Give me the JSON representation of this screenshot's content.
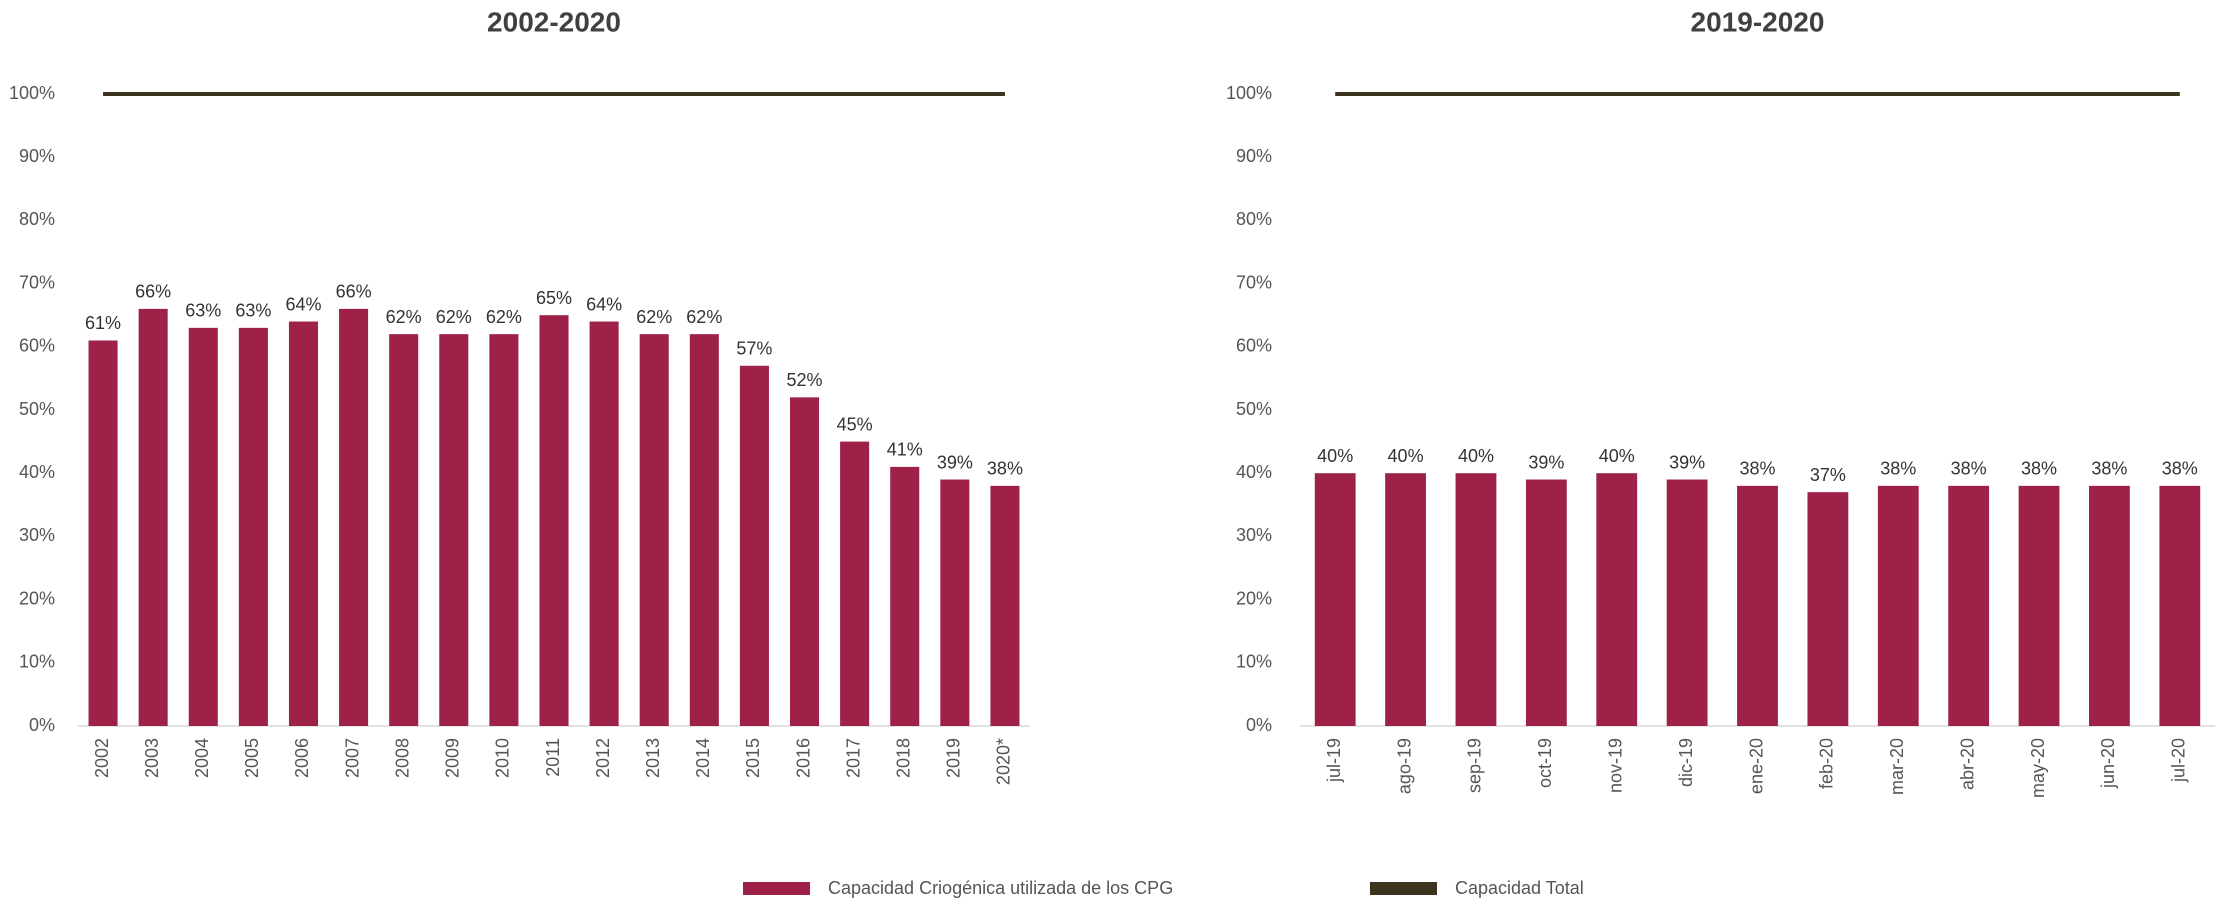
{
  "chart_data": [
    {
      "type": "bar",
      "title": "2002-2020",
      "categories": [
        "2002",
        "2003",
        "2004",
        "2005",
        "2006",
        "2007",
        "2008",
        "2009",
        "2010",
        "2011",
        "2012",
        "2013",
        "2014",
        "2015",
        "2016",
        "2017",
        "2018",
        "2019",
        "2020*"
      ],
      "series": [
        {
          "name": "Capacidad Criogénica utilizada de los CPG",
          "type": "bar",
          "color": "#9e2248",
          "values": [
            61,
            66,
            63,
            63,
            64,
            66,
            62,
            62,
            62,
            65,
            64,
            62,
            62,
            57,
            52,
            45,
            41,
            39,
            38
          ],
          "value_labels": [
            "61%",
            "66%",
            "63%",
            "63%",
            "64%",
            "66%",
            "62%",
            "62%",
            "62%",
            "65%",
            "64%",
            "62%",
            "62%",
            "57%",
            "52%",
            "45%",
            "41%",
            "39%",
            "38%"
          ]
        },
        {
          "name": "Capacidad Total",
          "type": "line",
          "color": "#3d3420",
          "values": [
            100,
            100,
            100,
            100,
            100,
            100,
            100,
            100,
            100,
            100,
            100,
            100,
            100,
            100,
            100,
            100,
            100,
            100,
            100
          ]
        }
      ],
      "ylim": [
        0,
        100
      ],
      "yticks": [
        {
          "value": 0,
          "label": "0%"
        },
        {
          "value": 10,
          "label": "10%"
        },
        {
          "value": 20,
          "label": "20%"
        },
        {
          "value": 30,
          "label": "30%"
        },
        {
          "value": 40,
          "label": "40%"
        },
        {
          "value": 50,
          "label": "50%"
        },
        {
          "value": 60,
          "label": "60%"
        },
        {
          "value": 70,
          "label": "70%"
        },
        {
          "value": 80,
          "label": "80%"
        },
        {
          "value": 90,
          "label": "90%"
        },
        {
          "value": 100,
          "label": "100%"
        }
      ]
    },
    {
      "type": "bar",
      "title": "2019-2020",
      "categories": [
        "jul-19",
        "ago-19",
        "sep-19",
        "oct-19",
        "nov-19",
        "dic-19",
        "ene-20",
        "feb-20",
        "mar-20",
        "abr-20",
        "may-20",
        "jun-20",
        "jul-20"
      ],
      "series": [
        {
          "type": "bar",
          "color": "#9e2248",
          "values": [
            40,
            40,
            40,
            39,
            40,
            39,
            38,
            37,
            38,
            38,
            38,
            38,
            38
          ],
          "value_labels": [
            "40%",
            "40%",
            "40%",
            "39%",
            "40%",
            "39%",
            "38%",
            "37%",
            "38%",
            "38%",
            "38%",
            "38%",
            "38%"
          ]
        },
        {
          "type": "line",
          "color": "#3d3420",
          "values": [
            100,
            100,
            100,
            100,
            100,
            100,
            100,
            100,
            100,
            100,
            100,
            100,
            100
          ]
        }
      ],
      "ylim": [
        0,
        100
      ],
      "yticks": [
        {
          "value": 0,
          "label": "0%"
        },
        {
          "value": 10,
          "label": "10%"
        },
        {
          "value": 20,
          "label": "20%"
        },
        {
          "value": 30,
          "label": "30%"
        },
        {
          "value": 40,
          "label": "40%"
        },
        {
          "value": 50,
          "label": "50%"
        },
        {
          "value": 60,
          "label": "60%"
        },
        {
          "value": 70,
          "label": "70%"
        },
        {
          "value": 80,
          "label": "80%"
        },
        {
          "value": 90,
          "label": "90%"
        },
        {
          "value": 100,
          "label": "100%"
        }
      ]
    }
  ]
}
